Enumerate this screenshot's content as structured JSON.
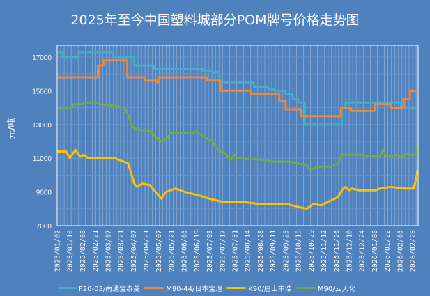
{
  "chart_data": {
    "type": "line",
    "title": "2025年至今中国塑料城部分POM牌号价格走势图",
    "ylabel": "元/吨",
    "xlabel": "",
    "ylim": [
      7000,
      17700
    ],
    "yticks": [
      "7000",
      "9000",
      "11000",
      "13000",
      "15000",
      "17000"
    ],
    "xtick_labels": [
      "2025/01/02",
      "2025/01/16",
      "2025/02/08",
      "2025/02/21",
      "2025/03/07",
      "2025/03/21",
      "2025/04/07",
      "2025/04/21",
      "2025/05/07",
      "2025/05/21",
      "2025/06/05",
      "2025/06/19",
      "2025/07/03",
      "2025/07/17",
      "2025/07/31",
      "2025/08/14",
      "2025/08/28",
      "2025/09/11",
      "2025/09/25",
      "2025/10/15",
      "2025/10/29",
      "2025/11/12",
      "2025/11/26",
      "2025/12/10",
      "2025/12/24",
      "2026/01/08",
      "2026/01/22",
      "2026/02/05",
      "2026/02/28"
    ],
    "grid": true,
    "legend_position": "bottom",
    "background": "#4f81bd",
    "series": [
      {
        "name": "F20-03/南通宝泰菱",
        "color": "#4bacc6",
        "step": true,
        "points": [
          [
            "2025/01/02",
            17300
          ],
          [
            "2025/01/08",
            17000
          ],
          [
            "2025/02/01",
            17300
          ],
          [
            "2025/03/13",
            17000
          ],
          [
            "2025/04/08",
            16500
          ],
          [
            "2025/05/01",
            16300
          ],
          [
            "2025/06/25",
            16200
          ],
          [
            "2025/07/06",
            16100
          ],
          [
            "2025/07/14",
            15500
          ],
          [
            "2025/08/21",
            15200
          ],
          [
            "2025/09/06",
            15100
          ],
          [
            "2025/09/12",
            15000
          ],
          [
            "2025/09/24",
            14800
          ],
          [
            "2025/10/06",
            14500
          ],
          [
            "2025/10/15",
            14300
          ],
          [
            "2025/10/22",
            13000
          ],
          [
            "2025/12/02",
            14000
          ],
          [
            "2025/12/06",
            14300
          ],
          [
            "2026/02/07",
            14000
          ],
          [
            "2026/03/09",
            14000
          ]
        ]
      },
      {
        "name": "M90-44/日本宝理",
        "color": "#f0883a",
        "step": true,
        "points": [
          [
            "2025/01/02",
            15800
          ],
          [
            "2025/02/24",
            16500
          ],
          [
            "2025/03/02",
            16800
          ],
          [
            "2025/03/30",
            15800
          ],
          [
            "2025/04/20",
            15600
          ],
          [
            "2025/05/05",
            15500
          ],
          [
            "2025/05/07",
            15800
          ],
          [
            "2025/06/30",
            15600
          ],
          [
            "2025/07/15",
            15000
          ],
          [
            "2025/08/18",
            14800
          ],
          [
            "2025/09/18",
            14400
          ],
          [
            "2025/09/25",
            13900
          ],
          [
            "2025/10/18",
            13500
          ],
          [
            "2025/12/01",
            14000
          ],
          [
            "2025/12/12",
            13800
          ],
          [
            "2026/01/08",
            14200
          ],
          [
            "2026/01/26",
            14000
          ],
          [
            "2026/02/12",
            14500
          ],
          [
            "2026/02/23",
            15000
          ],
          [
            "2026/03/09",
            15000
          ]
        ]
      },
      {
        "name": "K90/唐山中浩",
        "color": "#ffc000",
        "step": false,
        "points": [
          [
            "2025/01/02",
            11400
          ],
          [
            "2025/01/12",
            11400
          ],
          [
            "2025/01/16",
            11000
          ],
          [
            "2025/01/26",
            11500
          ],
          [
            "2025/02/04",
            11100
          ],
          [
            "2025/02/09",
            11200
          ],
          [
            "2025/02/14",
            11000
          ],
          [
            "2025/03/11",
            11000
          ],
          [
            "2025/03/15",
            11000
          ],
          [
            "2025/03/19",
            10900
          ],
          [
            "2025/03/31",
            10700
          ],
          [
            "2025/04/08",
            9500
          ],
          [
            "2025/04/11",
            9300
          ],
          [
            "2025/04/17",
            9500
          ],
          [
            "2025/04/26",
            9400
          ],
          [
            "2025/05/05",
            8900
          ],
          [
            "2025/05/10",
            8600
          ],
          [
            "2025/05/15",
            9000
          ],
          [
            "2025/05/20",
            9100
          ],
          [
            "2025/05/26",
            9200
          ],
          [
            "2025/06/06",
            9000
          ],
          [
            "2025/06/21",
            8800
          ],
          [
            "2025/07/03",
            8600
          ],
          [
            "2025/07/18",
            8400
          ],
          [
            "2025/08/10",
            8400
          ],
          [
            "2025/08/25",
            8300
          ],
          [
            "2025/09/25",
            8300
          ],
          [
            "2025/10/06",
            8200
          ],
          [
            "2025/10/24",
            8000
          ],
          [
            "2025/11/01",
            8300
          ],
          [
            "2025/11/09",
            8200
          ],
          [
            "2025/11/20",
            8500
          ],
          [
            "2025/11/28",
            8700
          ],
          [
            "2025/12/02",
            9100
          ],
          [
            "2025/12/06",
            9300
          ],
          [
            "2025/12/10",
            9100
          ],
          [
            "2025/12/13",
            9200
          ],
          [
            "2025/12/21",
            9100
          ],
          [
            "2026/01/10",
            9100
          ],
          [
            "2026/01/14",
            9200
          ],
          [
            "2026/01/26",
            9300
          ],
          [
            "2026/02/13",
            9200
          ],
          [
            "2026/03/02",
            9200
          ],
          [
            "2026/03/06",
            9700
          ],
          [
            "2026/03/09",
            10300
          ]
        ]
      },
      {
        "name": "M90/云天化",
        "color": "#70ad47",
        "step": false,
        "points": [
          [
            "2025/01/02",
            14000
          ],
          [
            "2025/01/18",
            14000
          ],
          [
            "2025/01/23",
            14200
          ],
          [
            "2025/02/07",
            14200
          ],
          [
            "2025/02/11",
            14300
          ],
          [
            "2025/02/23",
            14300
          ],
          [
            "2025/02/27",
            14200
          ],
          [
            "2025/03/15",
            14100
          ],
          [
            "2025/03/26",
            14000
          ],
          [
            "2025/03/31",
            13600
          ],
          [
            "2025/04/05",
            12900
          ],
          [
            "2025/04/12",
            12700
          ],
          [
            "2025/04/26",
            12600
          ],
          [
            "2025/05/05",
            12200
          ],
          [
            "2025/05/09",
            12000
          ],
          [
            "2025/05/17",
            12200
          ],
          [
            "2025/05/20",
            12500
          ],
          [
            "2025/06/15",
            12500
          ],
          [
            "2025/06/18",
            12600
          ],
          [
            "2025/06/26",
            12300
          ],
          [
            "2025/07/06",
            12000
          ],
          [
            "2025/07/12",
            11500
          ],
          [
            "2025/07/20",
            11300
          ],
          [
            "2025/07/26",
            10900
          ],
          [
            "2025/07/31",
            11200
          ],
          [
            "2025/08/03",
            11000
          ],
          [
            "2025/09/02",
            10900
          ],
          [
            "2025/09/09",
            10800
          ],
          [
            "2025/10/01",
            10800
          ],
          [
            "2025/10/12",
            10700
          ],
          [
            "2025/10/24",
            10600
          ],
          [
            "2025/10/28",
            10300
          ],
          [
            "2025/11/05",
            10500
          ],
          [
            "2025/11/20",
            10500
          ],
          [
            "2025/11/28",
            10700
          ],
          [
            "2025/12/02",
            11200
          ],
          [
            "2025/12/21",
            11200
          ],
          [
            "2026/01/07",
            11100
          ],
          [
            "2026/01/14",
            11100
          ],
          [
            "2026/01/17",
            11500
          ],
          [
            "2026/01/21",
            11100
          ],
          [
            "2026/02/03",
            11200
          ],
          [
            "2026/02/07",
            11000
          ],
          [
            "2026/02/13",
            11200
          ],
          [
            "2026/02/16",
            11300
          ],
          [
            "2026/02/20",
            11200
          ],
          [
            "2026/03/05",
            11200
          ],
          [
            "2026/03/09",
            11800
          ]
        ]
      }
    ]
  }
}
